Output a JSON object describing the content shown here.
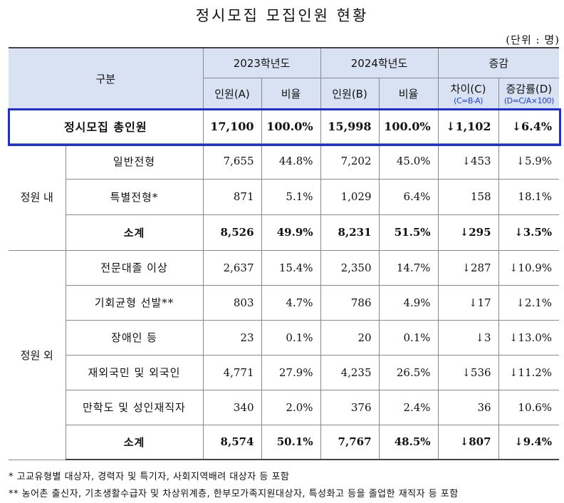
{
  "title": "정시모집 모집인원 현황",
  "unit": "(단위 : 명)",
  "header": {
    "category": "구분",
    "year2023": "2023학년도",
    "year2024": "2024학년도",
    "change": "증감",
    "count_a": "인원(A)",
    "ratio": "비율",
    "count_b": "인원(B)",
    "diff_c": "차이(C)",
    "diff_c_formula": "(C=B-A)",
    "rate_d": "증감률(D)",
    "rate_d_formula": "(D=C/A×100)"
  },
  "total": {
    "label": "정시모집 총인원",
    "a": "17,100",
    "ra": "100.0%",
    "b": "15,998",
    "rb": "100.0%",
    "c": "↓1,102",
    "d": "↓6.4%"
  },
  "inner": {
    "group": "정원 내",
    "rows": [
      {
        "label": "일반전형",
        "a": "7,655",
        "ra": "44.8%",
        "b": "7,202",
        "rb": "45.0%",
        "c": "↓453",
        "d": "↓5.9%"
      },
      {
        "label": "특별전형*",
        "a": "871",
        "ra": "5.1%",
        "b": "1,029",
        "rb": "6.4%",
        "c": "158",
        "d": "18.1%"
      }
    ],
    "subtotal": {
      "label": "소계",
      "a": "8,526",
      "ra": "49.9%",
      "b": "8,231",
      "rb": "51.5%",
      "c": "↓295",
      "d": "↓3.5%"
    }
  },
  "outer": {
    "group": "정원 외",
    "rows": [
      {
        "label": "전문대졸 이상",
        "a": "2,637",
        "ra": "15.4%",
        "b": "2,350",
        "rb": "14.7%",
        "c": "↓287",
        "d": "↓10.9%"
      },
      {
        "label": "기회균형 선발**",
        "a": "803",
        "ra": "4.7%",
        "b": "786",
        "rb": "4.9%",
        "c": "↓17",
        "d": "↓2.1%"
      },
      {
        "label": "장애인 등",
        "a": "23",
        "ra": "0.1%",
        "b": "20",
        "rb": "0.1%",
        "c": "↓3",
        "d": "↓13.0%"
      },
      {
        "label": "재외국민 및 외국인",
        "a": "4,771",
        "ra": "27.9%",
        "b": "4,235",
        "rb": "26.5%",
        "c": "↓536",
        "d": "↓11.2%"
      },
      {
        "label": "만학도 및 성인재직자",
        "a": "340",
        "ra": "2.0%",
        "b": "376",
        "rb": "2.4%",
        "c": "36",
        "d": "10.6%"
      }
    ],
    "subtotal": {
      "label": "소계",
      "a": "8,574",
      "ra": "50.1%",
      "b": "7,767",
      "rb": "48.5%",
      "c": "↓807",
      "d": "↓9.4%"
    }
  },
  "notes": [
    "* 고교유형별 대상자, 경력자 및 특기자, 사회지역배려 대상자 등 포함",
    "** 농어촌 출신자, 기초생활수급자 및 차상위계층,  한부모가족지원대상자, 특성화고 등을 졸업한 재직자 등 포함"
  ],
  "colors": {
    "header_bg": "#d9e2f2",
    "highlight_border": "#1a2ee0",
    "formula_text": "#1a3fd8"
  }
}
